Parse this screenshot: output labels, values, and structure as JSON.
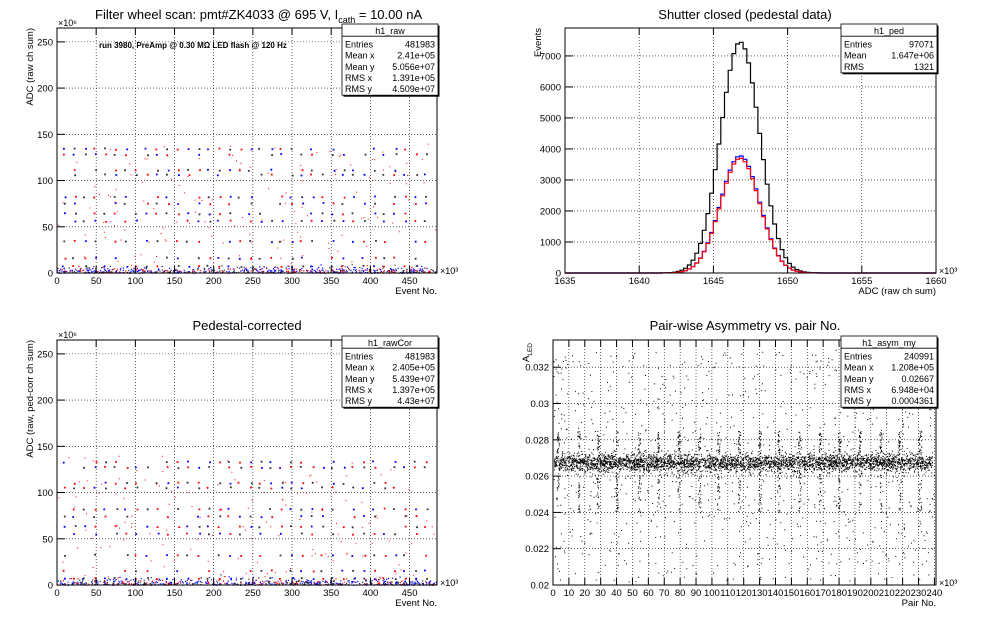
{
  "chart_data": [
    {
      "id": "raw",
      "type": "scatter",
      "title": "Filter wheel scan: pmt#ZK4033 @   695 V, I",
      "title_sub": "cath",
      "title_tail": " = 10.00 nA",
      "xlabel": "Event No.",
      "ylabel": "ADC (raw ch sum)",
      "x_exponent": "×10³",
      "y_exponent": "×10⁶",
      "xlim": [
        0,
        485
      ],
      "ylim": [
        0,
        265
      ],
      "x_ticks": [
        0,
        50,
        100,
        150,
        200,
        250,
        300,
        350,
        400,
        450
      ],
      "y_ticks": [
        0,
        50,
        100,
        150,
        200,
        250
      ],
      "grid": true,
      "annotation": "run 3980, PreAmp @ 0.30 MΩ LED flash @  120 Hz",
      "levels": [
        8,
        17,
        35,
        57,
        65,
        76,
        83,
        107,
        112,
        129,
        135
      ],
      "stats": {
        "name": "h1_raw",
        "rows": [
          {
            "label": "Entries",
            "value": "481983"
          },
          {
            "label": "Mean x",
            "value": "2.41e+05"
          },
          {
            "label": "Mean y",
            "value": "5.056e+07"
          },
          {
            "label": "RMS x",
            "value": "1.391e+05"
          },
          {
            "label": "RMS y",
            "value": "4.509e+07"
          }
        ]
      }
    },
    {
      "id": "ped",
      "type": "line",
      "title": "Shutter closed (pedestal data)",
      "xlabel": "ADC (raw ch sum)",
      "ylabel": "Events",
      "x_exponent": "×10³",
      "xlim": [
        1635,
        1660
      ],
      "ylim": [
        0,
        7900
      ],
      "x_ticks": [
        1635,
        1640,
        1645,
        1650,
        1655,
        1660
      ],
      "y_ticks": [
        0,
        1000,
        2000,
        3000,
        4000,
        5000,
        6000,
        7000
      ],
      "grid": true,
      "series": [
        {
          "mean": 1646.8,
          "sigma": 1.32,
          "peak": 7450,
          "color": "#000000"
        },
        {
          "mean": 1646.8,
          "sigma": 1.32,
          "peak": 3780,
          "color": "#0000ff"
        },
        {
          "mean": 1646.8,
          "sigma": 1.32,
          "peak": 3700,
          "color": "#ff0000"
        }
      ],
      "stats": {
        "name": "h1_ped",
        "rows": [
          {
            "label": "Entries",
            "value": "97071"
          },
          {
            "label": "Mean",
            "value": "1.647e+06"
          },
          {
            "label": "RMS",
            "value": "1321"
          }
        ]
      }
    },
    {
      "id": "rawCor",
      "type": "scatter",
      "title": "Pedestal-corrected",
      "xlabel": "Event No.",
      "ylabel": "ADC (raw, ped-corr ch sum)",
      "x_exponent": "×10³",
      "y_exponent": "×10⁶",
      "xlim": [
        0,
        485
      ],
      "ylim": [
        0,
        265
      ],
      "x_ticks": [
        0,
        50,
        100,
        150,
        200,
        250,
        300,
        350,
        400,
        450
      ],
      "y_ticks": [
        0,
        50,
        100,
        150,
        200,
        250
      ],
      "grid": true,
      "levels": [
        8,
        16,
        33,
        56,
        64,
        75,
        83,
        106,
        111,
        128,
        134
      ],
      "stats": {
        "name": "h1_rawCor",
        "rows": [
          {
            "label": "Entries",
            "value": "481983"
          },
          {
            "label": "Mean x",
            "value": "2.405e+05"
          },
          {
            "label": "Mean y",
            "value": "5.439e+07"
          },
          {
            "label": "RMS x",
            "value": "1.397e+05"
          },
          {
            "label": "RMS y",
            "value": "4.43e+07"
          }
        ]
      }
    },
    {
      "id": "asym",
      "type": "scatter",
      "title": "Pair-wise Asymmetry vs. pair No.",
      "xlabel": "Pair No.",
      "ylabel": "A",
      "ylabel_sub": "LED",
      "x_exponent": "×10³",
      "xlim": [
        0,
        241
      ],
      "ylim": [
        0.02,
        0.0335
      ],
      "x_ticks": [
        0,
        10,
        20,
        30,
        40,
        50,
        60,
        70,
        80,
        90,
        100,
        110,
        120,
        130,
        140,
        150,
        160,
        170,
        180,
        190,
        200,
        210,
        220,
        230,
        240
      ],
      "y_ticks": [
        0.02,
        0.022,
        0.024,
        0.026,
        0.028,
        0.03,
        0.032
      ],
      "grid": true,
      "band": [
        0.0262,
        0.0273
      ],
      "spike_x": [
        3,
        16,
        28,
        40,
        54,
        66,
        79,
        92,
        104,
        117,
        130,
        142,
        155,
        168,
        180,
        193,
        206,
        218,
        231
      ],
      "stats": {
        "name": "h1_asym_my",
        "rows": [
          {
            "label": "Entries",
            "value": "240991"
          },
          {
            "label": "Mean x",
            "value": "1.208e+05"
          },
          {
            "label": "Mean y",
            "value": "0.02667"
          },
          {
            "label": "RMS x",
            "value": "6.948e+04"
          },
          {
            "label": "RMS y",
            "value": "0.0004361"
          }
        ]
      }
    }
  ]
}
